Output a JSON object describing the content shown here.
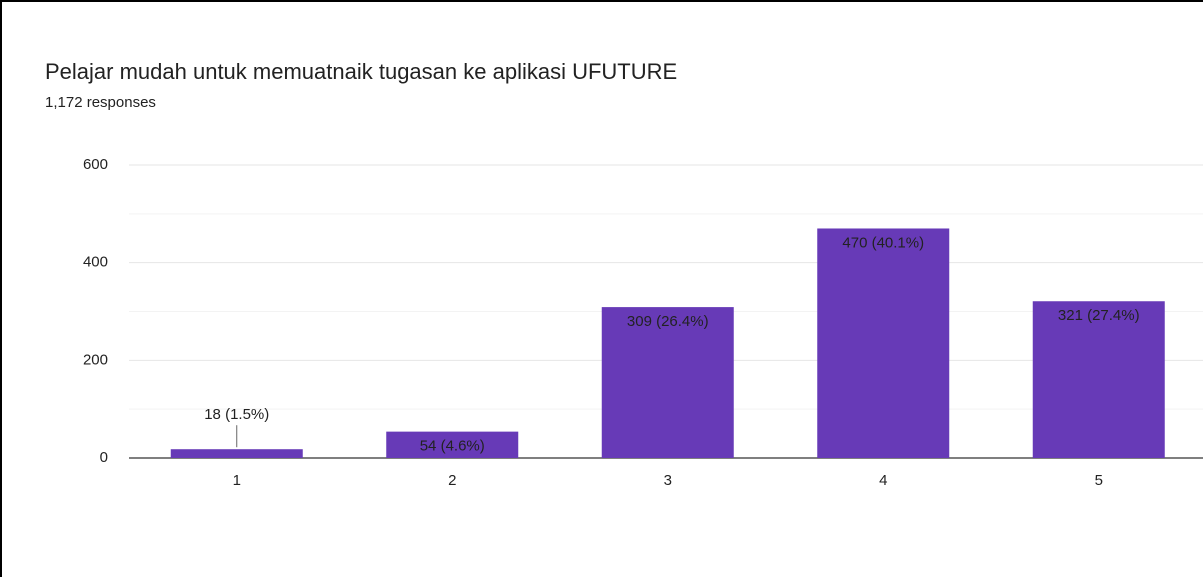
{
  "chart_data": {
    "type": "bar",
    "title": "Pelajar mudah untuk memuatnaik tugasan ke aplikasi UFUTURE",
    "subtitle": "1,172 responses",
    "categories": [
      "1",
      "2",
      "3",
      "4",
      "5"
    ],
    "values": [
      18,
      54,
      309,
      470,
      321
    ],
    "value_labels": [
      "18 (1.5%)",
      "54 (4.6%)",
      "309 (26.4%)",
      "470 (40.1%)",
      "321 (27.4%)"
    ],
    "color": "#673ab7",
    "ylim": [
      0,
      600
    ],
    "yticks": [
      0,
      200,
      400,
      600
    ],
    "minor_yticks": [
      100,
      300,
      500
    ],
    "grid": true
  }
}
